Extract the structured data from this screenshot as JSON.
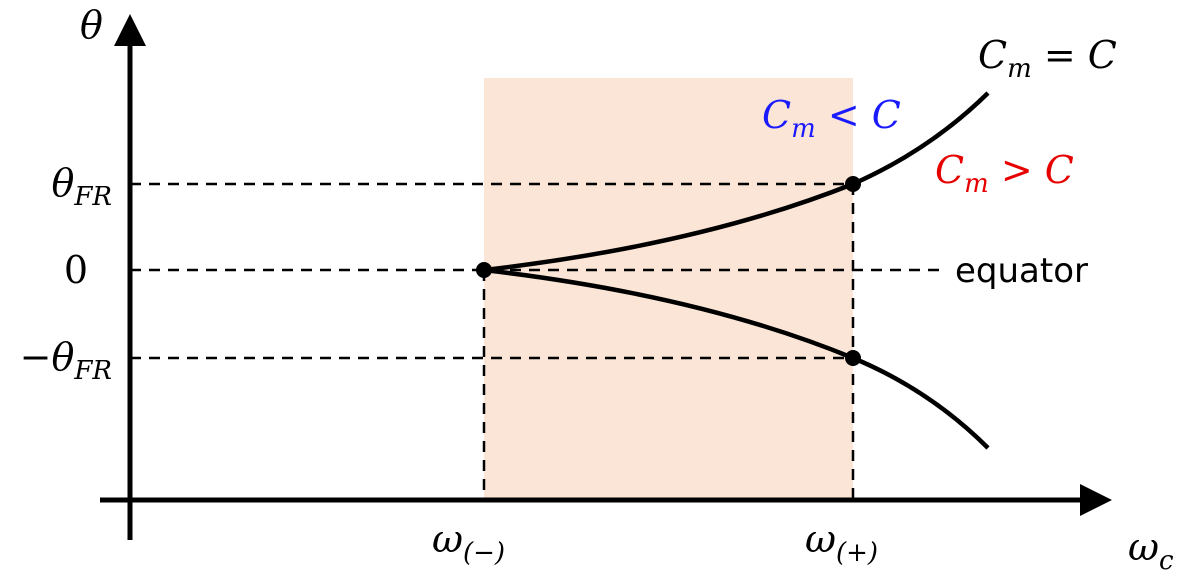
{
  "axes": {
    "y_label": {
      "base": "θ"
    },
    "x_label": {
      "base": "ω",
      "sub": "c"
    }
  },
  "y_ticks": [
    {
      "base": "θ",
      "sub": "FR"
    },
    {
      "base": "0"
    },
    {
      "base": "−θ",
      "sub": "FR"
    }
  ],
  "x_ticks": [
    {
      "base": "ω",
      "sub": "(−)"
    },
    {
      "base": "ω",
      "sub": "(+)"
    }
  ],
  "equator": "equator",
  "curve_labels": [
    {
      "base": "C",
      "sub": "m",
      "rest": " = C",
      "color": "#000000"
    },
    {
      "base": "C",
      "sub": "m",
      "rest": " < C",
      "color": "#1a1aff"
    },
    {
      "base": "C",
      "sub": "m",
      "rest": " > C",
      "color": "#e60000"
    }
  ]
}
